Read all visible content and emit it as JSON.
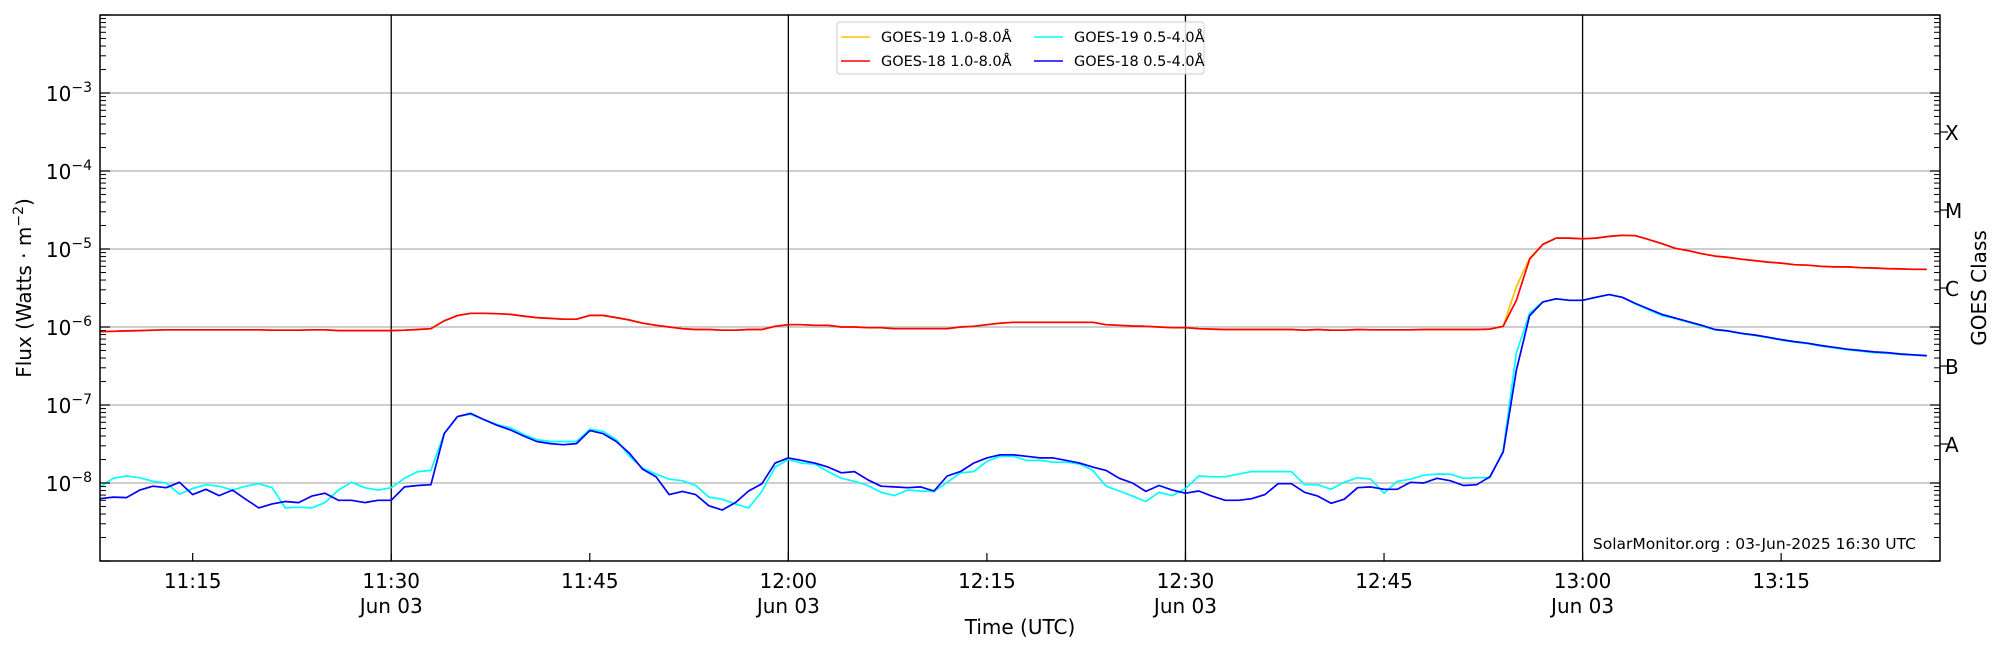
{
  "chart_data": {
    "type": "line",
    "title": "",
    "xlabel": "Time (UTC)",
    "ylabel": "Flux (Watts · m",
    "ylabel_sup": "−2",
    "ylabel_end": ")",
    "right_label": "GOES Class",
    "x_start": "11:08",
    "cadence_minutes": 1,
    "xlim": [
      "11:08",
      "13:27"
    ],
    "ylim": [
      1e-09,
      0.01
    ],
    "yscale": "log",
    "grid": "horizontal at decades",
    "legend_position": "top-center",
    "xticks": [
      {
        "time": "11:15",
        "label": "11:15",
        "sub": ""
      },
      {
        "time": "11:30",
        "label": "11:30",
        "sub": "Jun 03"
      },
      {
        "time": "11:45",
        "label": "11:45",
        "sub": ""
      },
      {
        "time": "12:00",
        "label": "12:00",
        "sub": "Jun 03"
      },
      {
        "time": "12:15",
        "label": "12:15",
        "sub": ""
      },
      {
        "time": "12:30",
        "label": "12:30",
        "sub": "Jun 03"
      },
      {
        "time": "12:45",
        "label": "12:45",
        "sub": ""
      },
      {
        "time": "13:00",
        "label": "13:00",
        "sub": "Jun 03"
      },
      {
        "time": "13:15",
        "label": "13:15",
        "sub": ""
      }
    ],
    "vlines": [
      "11:30",
      "12:00",
      "12:30",
      "13:00"
    ],
    "yticks": [
      {
        "value": 1e-08,
        "base": "10",
        "exp": "−8"
      },
      {
        "value": 1e-07,
        "base": "10",
        "exp": "−7"
      },
      {
        "value": 1e-06,
        "base": "10",
        "exp": "−6"
      },
      {
        "value": 1e-05,
        "base": "10",
        "exp": "−5"
      },
      {
        "value": 0.0001,
        "base": "10",
        "exp": "−4"
      },
      {
        "value": 0.001,
        "base": "10",
        "exp": "−3"
      }
    ],
    "goes_classes": [
      {
        "label": "A",
        "value": 3.16e-08
      },
      {
        "label": "B",
        "value": 3.16e-07
      },
      {
        "label": "C",
        "value": 3.16e-06
      },
      {
        "label": "M",
        "value": 3.16e-05
      },
      {
        "label": "X",
        "value": 0.000316
      }
    ],
    "annotation": "SolarMonitor.org : 03-Jun-2025 16:30 UTC",
    "series": [
      {
        "name": "GOES-19 1.0-8.0Å",
        "color": "#ffc000",
        "values": [
          8.7e-07,
          8.8e-07,
          8.9e-07,
          9e-07,
          9.1e-07,
          9.2e-07,
          9.2e-07,
          9.2e-07,
          9.2e-07,
          9.2e-07,
          9.2e-07,
          9.2e-07,
          9.2e-07,
          9.1e-07,
          9.1e-07,
          9.1e-07,
          9.2e-07,
          9.2e-07,
          9e-07,
          9e-07,
          9e-07,
          9e-07,
          9e-07,
          9.1e-07,
          9.3e-07,
          9.5e-07,
          1.2e-06,
          1.4e-06,
          1.5e-06,
          1.5e-06,
          1.48e-06,
          1.45e-06,
          1.38e-06,
          1.32e-06,
          1.29e-06,
          1.26e-06,
          1.26e-06,
          1.41e-06,
          1.41e-06,
          1.32e-06,
          1.23e-06,
          1.12e-06,
          1.05e-06,
          1e-06,
          9.5e-07,
          9.3e-07,
          9.3e-07,
          9.1e-07,
          9.1e-07,
          9.3e-07,
          9.3e-07,
          1.02e-06,
          1.07e-06,
          1.07e-06,
          1.05e-06,
          1.05e-06,
          1e-06,
          1e-06,
          9.8e-07,
          9.8e-07,
          9.5e-07,
          9.5e-07,
          9.5e-07,
          9.5e-07,
          9.5e-07,
          1e-06,
          1.02e-06,
          1.07e-06,
          1.12e-06,
          1.15e-06,
          1.15e-06,
          1.15e-06,
          1.15e-06,
          1.15e-06,
          1.15e-06,
          1.15e-06,
          1.07e-06,
          1.05e-06,
          1.03e-06,
          1.02e-06,
          1e-06,
          9.8e-07,
          9.8e-07,
          9.5e-07,
          9.4e-07,
          9.3e-07,
          9.3e-07,
          9.3e-07,
          9.3e-07,
          9.3e-07,
          9.3e-07,
          9.1e-07,
          9.3e-07,
          9.1e-07,
          9.1e-07,
          9.3e-07,
          9.2e-07,
          9.2e-07,
          9.2e-07,
          9.2e-07,
          9.3e-07,
          9.3e-07,
          9.3e-07,
          9.3e-07,
          9.3e-07,
          9.4e-07,
          1.02e-06,
          3.3e-06,
          7.6e-06,
          1.15e-05,
          1.38e-05,
          1.38e-05,
          1.35e-05,
          1.38e-05,
          1.45e-05,
          1.5e-05,
          1.48e-05,
          1.32e-05,
          1.17e-05,
          1.02e-05,
          9.5e-06,
          8.7e-06,
          8.1e-06,
          7.8e-06,
          7.4e-06,
          7.1e-06,
          6.8e-06,
          6.6e-06,
          6.3e-06,
          6.2e-06,
          6e-06,
          5.9e-06,
          5.9e-06,
          5.75e-06,
          5.7e-06,
          5.6e-06,
          5.55e-06,
          5.5e-06,
          5.5e-06
        ]
      },
      {
        "name": "GOES-18 1.0-8.0Å",
        "color": "#ff0000",
        "values": [
          8.7e-07,
          8.8e-07,
          8.9e-07,
          9e-07,
          9.1e-07,
          9.2e-07,
          9.2e-07,
          9.2e-07,
          9.2e-07,
          9.2e-07,
          9.2e-07,
          9.2e-07,
          9.2e-07,
          9.1e-07,
          9.1e-07,
          9.1e-07,
          9.2e-07,
          9.2e-07,
          9e-07,
          9e-07,
          9e-07,
          9e-07,
          9e-07,
          9.1e-07,
          9.3e-07,
          9.5e-07,
          1.2e-06,
          1.4e-06,
          1.5e-06,
          1.5e-06,
          1.48e-06,
          1.45e-06,
          1.38e-06,
          1.32e-06,
          1.29e-06,
          1.26e-06,
          1.26e-06,
          1.41e-06,
          1.41e-06,
          1.32e-06,
          1.23e-06,
          1.12e-06,
          1.05e-06,
          1e-06,
          9.5e-07,
          9.3e-07,
          9.3e-07,
          9.1e-07,
          9.1e-07,
          9.3e-07,
          9.3e-07,
          1.02e-06,
          1.07e-06,
          1.07e-06,
          1.05e-06,
          1.05e-06,
          1e-06,
          1e-06,
          9.8e-07,
          9.8e-07,
          9.5e-07,
          9.5e-07,
          9.5e-07,
          9.5e-07,
          9.5e-07,
          1e-06,
          1.02e-06,
          1.07e-06,
          1.12e-06,
          1.15e-06,
          1.15e-06,
          1.15e-06,
          1.15e-06,
          1.15e-06,
          1.15e-06,
          1.15e-06,
          1.07e-06,
          1.05e-06,
          1.03e-06,
          1.02e-06,
          1e-06,
          9.8e-07,
          9.8e-07,
          9.5e-07,
          9.4e-07,
          9.3e-07,
          9.3e-07,
          9.3e-07,
          9.3e-07,
          9.3e-07,
          9.3e-07,
          9.1e-07,
          9.3e-07,
          9.1e-07,
          9.1e-07,
          9.3e-07,
          9.2e-07,
          9.2e-07,
          9.2e-07,
          9.2e-07,
          9.3e-07,
          9.3e-07,
          9.3e-07,
          9.3e-07,
          9.3e-07,
          9.4e-07,
          1.02e-06,
          2.2e-06,
          7.4e-06,
          1.15e-05,
          1.38e-05,
          1.38e-05,
          1.35e-05,
          1.38e-05,
          1.45e-05,
          1.5e-05,
          1.48e-05,
          1.32e-05,
          1.17e-05,
          1.02e-05,
          9.5e-06,
          8.7e-06,
          8.1e-06,
          7.8e-06,
          7.4e-06,
          7.1e-06,
          6.8e-06,
          6.6e-06,
          6.3e-06,
          6.2e-06,
          6e-06,
          5.9e-06,
          5.9e-06,
          5.75e-06,
          5.7e-06,
          5.6e-06,
          5.55e-06,
          5.5e-06,
          5.5e-06
        ]
      },
      {
        "name": "GOES-19 0.5-4.0Å",
        "color": "#00ffff",
        "values": [
          8.9e-09,
          1.15e-08,
          1.23e-08,
          1.17e-08,
          1.05e-08,
          1e-08,
          7.2e-09,
          8.5e-09,
          9.5e-09,
          9.1e-09,
          8.1e-09,
          9.1e-09,
          9.8e-09,
          8.7e-09,
          4.8e-09,
          4.9e-09,
          4.8e-09,
          5.6e-09,
          8.1e-09,
          1.02e-08,
          8.7e-09,
          8.1e-09,
          8.7e-09,
          1.15e-08,
          1.4e-08,
          1.45e-08,
          4.3e-08,
          7.1e-08,
          7.6e-08,
          6.5e-08,
          5.6e-08,
          5.1e-08,
          4.2e-08,
          3.6e-08,
          3.4e-08,
          3.4e-08,
          3.4e-08,
          4.9e-08,
          4.6e-08,
          3.6e-08,
          2.2e-08,
          1.55e-08,
          1.3e-08,
          1.12e-08,
          1.07e-08,
          9.3e-09,
          6.6e-09,
          6.2e-09,
          5.4e-09,
          4.8e-09,
          7.8e-09,
          1.6e-08,
          2e-08,
          1.8e-08,
          1.75e-08,
          1.4e-08,
          1.15e-08,
          1.05e-08,
          9.3e-09,
          7.6e-09,
          6.9e-09,
          8.1e-09,
          7.9e-09,
          7.8e-09,
          1.02e-08,
          1.35e-08,
          1.4e-08,
          1.9e-08,
          2.2e-08,
          2.2e-08,
          1.95e-08,
          1.95e-08,
          1.85e-08,
          1.85e-08,
          1.75e-08,
          1.45e-08,
          9.1e-09,
          7.9e-09,
          6.8e-09,
          5.8e-09,
          7.6e-09,
          6.9e-09,
          8.5e-09,
          1.23e-08,
          1.2e-08,
          1.2e-08,
          1.3e-08,
          1.4e-08,
          1.4e-08,
          1.4e-08,
          1.4e-08,
          9.5e-09,
          9.5e-09,
          8.3e-09,
          1.02e-08,
          1.17e-08,
          1.12e-08,
          7.4e-09,
          1.05e-08,
          1.12e-08,
          1.26e-08,
          1.3e-08,
          1.3e-08,
          1.15e-08,
          1.17e-08,
          1.17e-08,
          2.6e-08,
          4.7e-07,
          1.5e-06,
          2.1e-06,
          2.3e-06,
          2.2e-06,
          2.2e-06,
          2.4e-06,
          2.6e-06,
          2.4e-06,
          1.97e-06,
          1.66e-06,
          1.4e-06,
          1.28e-06,
          1.15e-06,
          1.03e-06,
          9.2e-07,
          8.8e-07,
          8.2e-07,
          7.8e-07,
          7.3e-07,
          6.8e-07,
          6.4e-07,
          6.1e-07,
          5.7e-07,
          5.4e-07,
          5.1e-07,
          4.9e-07,
          4.7e-07,
          4.6e-07,
          4.45e-07,
          4.35e-07,
          4.25e-07
        ]
      },
      {
        "name": "GOES-18 0.5-4.0Å",
        "color": "#0000ff",
        "values": [
          6.3e-09,
          6.6e-09,
          6.5e-09,
          8.1e-09,
          9.1e-09,
          8.7e-09,
          1.02e-08,
          7.1e-09,
          8.3e-09,
          6.9e-09,
          8.1e-09,
          6.2e-09,
          4.8e-09,
          5.4e-09,
          5.8e-09,
          5.6e-09,
          6.8e-09,
          7.4e-09,
          6e-09,
          6e-09,
          5.6e-09,
          6e-09,
          6e-09,
          8.9e-09,
          9.3e-09,
          9.5e-09,
          4.3e-08,
          7.1e-08,
          7.8e-08,
          6.5e-08,
          5.5e-08,
          4.8e-08,
          4e-08,
          3.4e-08,
          3.2e-08,
          3.1e-08,
          3.2e-08,
          4.7e-08,
          4.3e-08,
          3.4e-08,
          2.4e-08,
          1.5e-08,
          1.2e-08,
          7.1e-09,
          7.8e-09,
          7.1e-09,
          5.1e-09,
          4.5e-09,
          5.6e-09,
          7.9e-09,
          9.8e-09,
          1.8e-08,
          2.1e-08,
          1.95e-08,
          1.8e-08,
          1.6e-08,
          1.35e-08,
          1.4e-08,
          1.1e-08,
          9.1e-09,
          8.9e-09,
          8.7e-09,
          8.9e-09,
          7.9e-09,
          1.23e-08,
          1.4e-08,
          1.8e-08,
          2.1e-08,
          2.3e-08,
          2.3e-08,
          2.2e-08,
          2.1e-08,
          2.1e-08,
          1.95e-08,
          1.8e-08,
          1.6e-08,
          1.45e-08,
          1.15e-08,
          1e-08,
          7.8e-09,
          9.3e-09,
          8.1e-09,
          7.4e-09,
          7.9e-09,
          6.8e-09,
          6e-09,
          6e-09,
          6.3e-09,
          7.1e-09,
          9.8e-09,
          9.8e-09,
          7.6e-09,
          6.8e-09,
          5.5e-09,
          6.2e-09,
          8.7e-09,
          8.9e-09,
          8.3e-09,
          8.3e-09,
          1.02e-08,
          1e-08,
          1.15e-08,
          1.07e-08,
          9.3e-09,
          9.5e-09,
          1.2e-08,
          2.5e-08,
          2.8e-07,
          1.4e-06,
          2.1e-06,
          2.3e-06,
          2.2e-06,
          2.2e-06,
          2.4e-06,
          2.6e-06,
          2.4e-06,
          2e-06,
          1.7e-06,
          1.45e-06,
          1.3e-06,
          1.17e-06,
          1.05e-06,
          9.3e-07,
          8.9e-07,
          8.3e-07,
          7.9e-07,
          7.4e-07,
          6.9e-07,
          6.5e-07,
          6.2e-07,
          5.8e-07,
          5.5e-07,
          5.2e-07,
          5e-07,
          4.8e-07,
          4.7e-07,
          4.5e-07,
          4.4e-07,
          4.3e-07
        ]
      }
    ]
  }
}
